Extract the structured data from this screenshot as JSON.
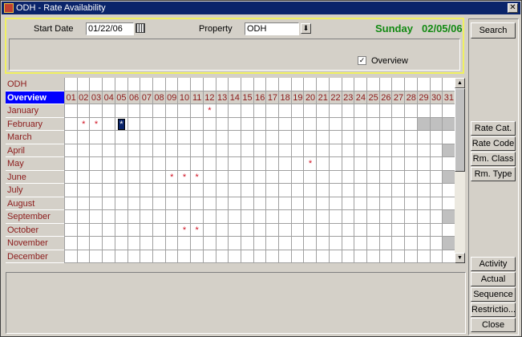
{
  "window": {
    "title": "ODH - Rate Availability",
    "close_label": "✕"
  },
  "filters": {
    "start_date_label": "Start Date",
    "start_date_value": "01/22/06",
    "property_label": "Property",
    "property_value": "ODH",
    "day_name": "Sunday",
    "date_display": "02/05/06",
    "overview_label": "Overview",
    "overview_checked": true
  },
  "grid": {
    "property_row": "ODH",
    "overview_label": "Overview",
    "days": [
      "01",
      "02",
      "03",
      "04",
      "05",
      "06",
      "07",
      "08",
      "09",
      "10",
      "11",
      "12",
      "13",
      "14",
      "15",
      "16",
      "17",
      "18",
      "19",
      "20",
      "21",
      "22",
      "23",
      "24",
      "25",
      "26",
      "27",
      "28",
      "29",
      "30",
      "31"
    ],
    "months": [
      "January",
      "February",
      "March",
      "April",
      "May",
      "June",
      "July",
      "August",
      "September",
      "October",
      "November",
      "December"
    ],
    "marks": {
      "January": [
        12
      ],
      "February": [
        2,
        3,
        5
      ],
      "May": [
        20
      ],
      "June": [
        9,
        10,
        11
      ],
      "October": [
        10,
        11
      ]
    },
    "selected": {
      "month": "February",
      "day": 5
    },
    "marker": "*",
    "unavailable": {
      "February": [
        29,
        30,
        31
      ],
      "April": [
        31
      ],
      "June": [
        31
      ],
      "September": [
        31
      ],
      "November": [
        31
      ]
    }
  },
  "buttons": {
    "search": "Search",
    "rate_cat": "Rate Cat.",
    "rate_code": "Rate Code",
    "rm_class": "Rm. Class",
    "rm_type": "Rm. Type",
    "activity": "Activity",
    "actual": "Actual",
    "sequence": "Sequence",
    "restriction": "Restrictio...",
    "close": "Close"
  },
  "colors": {
    "accent": "#0a246a",
    "highlight": "#138a13",
    "label": "#8b1a1a",
    "marker": "#d01020"
  }
}
